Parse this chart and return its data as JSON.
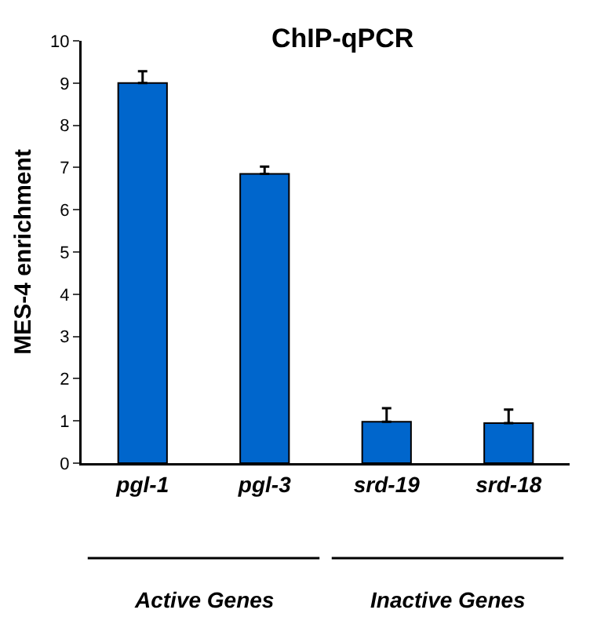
{
  "chart_data": {
    "type": "bar",
    "title": "ChIP-qPCR",
    "ylabel": "MES-4 enrichment",
    "categories": [
      "pgl-1",
      "pgl-3",
      "srd-19",
      "srd-18"
    ],
    "values": [
      9.0,
      6.85,
      0.98,
      0.95
    ],
    "errors": [
      [
        9.0,
        9.28
      ],
      [
        6.85,
        7.02
      ],
      [
        0.98,
        1.3
      ],
      [
        0.95,
        1.27
      ]
    ],
    "color": "#0066cc",
    "ylim": [
      0,
      10
    ],
    "yticks": [
      0,
      1,
      2,
      3,
      4,
      5,
      6,
      7,
      8,
      9,
      10
    ],
    "annotations": [
      "Active Genes",
      "Inactive Genes"
    ],
    "grid": false,
    "legend": false
  }
}
